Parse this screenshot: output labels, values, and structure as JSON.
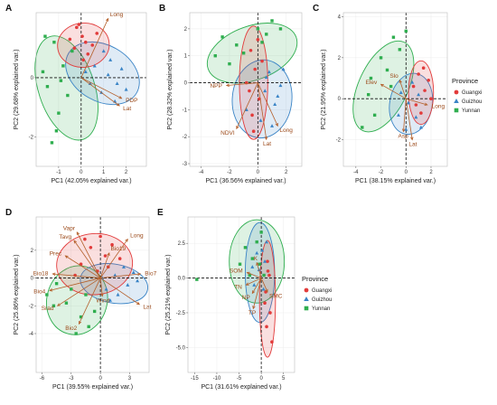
{
  "colors": {
    "Guangxi": "#e23b3b",
    "Guizhou": "#3a84c6",
    "Yunnan": "#2fae4f",
    "arrow": "#b45f2a"
  },
  "legends": [
    {
      "title": "Province",
      "items": [
        "Guangxi",
        "Guizhou",
        "Yunnan"
      ]
    },
    {
      "title": "Province",
      "items": [
        "Guangxi",
        "Guizhou",
        "Yunnan"
      ]
    }
  ],
  "chart_data": [
    {
      "id": "A",
      "type": "scatter",
      "xlabel": "PC1 (42.05% explained var.)",
      "ylabel": "PC2 (29.68% explained var.)",
      "xlim": [
        -2,
        2.9
      ],
      "ylim": [
        -3.0,
        2.2
      ],
      "xticks": [
        -1,
        0,
        1,
        2
      ],
      "yticks": [
        -2,
        0
      ],
      "ellipses": {
        "Guangxi": {
          "cx": 0.1,
          "cy": 1.1,
          "rx": 1.15,
          "ry": 0.75,
          "angle": 5
        },
        "Guizhou": {
          "cx": 0.95,
          "cy": 0.15,
          "rx": 1.75,
          "ry": 0.95,
          "angle": -30
        },
        "Yunnan": {
          "cx": -0.65,
          "cy": -0.35,
          "rx": 2.4,
          "ry": 0.95,
          "angle": -72
        }
      },
      "points": {
        "Guangxi": [
          [
            -0.2,
            1.7
          ],
          [
            0.05,
            1.4
          ],
          [
            0.2,
            1.2
          ],
          [
            -0.3,
            1.0
          ],
          [
            0.5,
            1.1
          ],
          [
            0.3,
            0.8
          ],
          [
            -0.5,
            1.3
          ],
          [
            0.7,
            1.5
          ],
          [
            0.1,
            0.6
          ],
          [
            -0.1,
            1.8
          ]
        ],
        "Guizhou": [
          [
            0.6,
            0.4
          ],
          [
            1.2,
            0.1
          ],
          [
            1.6,
            -0.2
          ],
          [
            0.9,
            -0.5
          ],
          [
            1.8,
            0.3
          ],
          [
            0.4,
            -0.2
          ],
          [
            1.3,
            0.6
          ],
          [
            2.0,
            -0.4
          ],
          [
            0.2,
            0.2
          ],
          [
            1.0,
            0.9
          ],
          [
            1.5,
            -0.8
          ]
        ],
        "Yunnan": [
          [
            -1.2,
            1.2
          ],
          [
            -0.8,
            0.4
          ],
          [
            -1.5,
            -0.3
          ],
          [
            -1.0,
            -1.2
          ],
          [
            -1.3,
            -2.2
          ],
          [
            -0.6,
            -0.6
          ],
          [
            -1.7,
            0.2
          ],
          [
            -0.4,
            0.9
          ],
          [
            -1.1,
            -1.8
          ],
          [
            -0.9,
            -0.1
          ],
          [
            -1.6,
            1.4
          ]
        ]
      },
      "loadings": [
        {
          "label": "Long",
          "x": 1.2,
          "y": 2.0
        },
        {
          "label": "PDP",
          "x": 1.8,
          "y": -0.7
        },
        {
          "label": "Lat",
          "x": 1.7,
          "y": -0.95
        }
      ]
    },
    {
      "id": "B",
      "type": "scatter",
      "xlabel": "PC1 (36.56% explained var.)",
      "ylabel": "PC2 (28.32% explained var.)",
      "xlim": [
        -4.8,
        3.1
      ],
      "ylim": [
        -3.1,
        2.6
      ],
      "xticks": [
        -4,
        -2,
        0,
        2
      ],
      "yticks": [
        -3,
        -2,
        -1,
        0,
        1,
        2
      ],
      "ellipses": {
        "Guangxi": {
          "cx": -0.3,
          "cy": 0.0,
          "rx": 1.0,
          "ry": 2.1,
          "angle": 0
        },
        "Guizhou": {
          "cx": 0.3,
          "cy": -0.6,
          "rx": 2.1,
          "ry": 1.45,
          "angle": -5
        },
        "Yunnan": {
          "cx": -0.4,
          "cy": 1.1,
          "rx": 3.3,
          "ry": 1.0,
          "angle": 20
        }
      },
      "points": {
        "Guangxi": [
          [
            -0.5,
            1.2
          ],
          [
            -0.2,
            0.5
          ],
          [
            -0.8,
            0.0
          ],
          [
            0.1,
            -0.6
          ],
          [
            -0.4,
            -1.2
          ],
          [
            0.3,
            0.8
          ],
          [
            -0.6,
            -0.3
          ],
          [
            0.0,
            1.6
          ],
          [
            -0.3,
            -1.8
          ]
        ],
        "Guizhou": [
          [
            0.5,
            -0.3
          ],
          [
            1.2,
            -0.8
          ],
          [
            0.8,
            0.4
          ],
          [
            1.6,
            -0.1
          ],
          [
            0.2,
            -1.4
          ],
          [
            1.0,
            -1.6
          ],
          [
            1.8,
            0.5
          ],
          [
            -0.8,
            -1.0
          ],
          [
            0.6,
            0.2
          ],
          [
            1.4,
            -0.5
          ]
        ],
        "Yunnan": [
          [
            -2.5,
            1.7
          ],
          [
            -1.5,
            1.4
          ],
          [
            0.0,
            2.0
          ],
          [
            1.0,
            2.3
          ],
          [
            -3.0,
            1.0
          ],
          [
            0.6,
            1.8
          ],
          [
            -1.0,
            1.1
          ],
          [
            1.6,
            2.0
          ],
          [
            -2.0,
            0.7
          ],
          [
            0.3,
            1.5
          ]
        ]
      },
      "loadings": [
        {
          "label": "NPP",
          "x": -2.2,
          "y": -0.1
        },
        {
          "label": "NDVI",
          "x": -1.5,
          "y": -1.7
        },
        {
          "label": "Long",
          "x": 1.4,
          "y": -1.6
        },
        {
          "label": "Lat",
          "x": 0.6,
          "y": -2.1
        }
      ]
    },
    {
      "id": "C",
      "type": "scatter",
      "xlabel": "PC1 (38.15% explained var.)",
      "ylabel": "PC2 (21.95% explained var.)",
      "xlim": [
        -5.0,
        3.3
      ],
      "ylim": [
        -3.3,
        4.2
      ],
      "xticks": [
        -4,
        -2,
        0,
        2
      ],
      "yticks": [
        -2,
        0,
        2,
        4
      ],
      "ellipses": {
        "Guangxi": {
          "cx": 1.2,
          "cy": 0.3,
          "rx": 1.0,
          "ry": 1.55,
          "angle": 0
        },
        "Guizhou": {
          "cx": 0.4,
          "cy": -0.25,
          "rx": 1.7,
          "ry": 1.5,
          "angle": -10
        },
        "Yunnan": {
          "cx": -1.8,
          "cy": 0.6,
          "rx": 3.9,
          "ry": 1.2,
          "angle": 65
        }
      },
      "points": {
        "Guangxi": [
          [
            1.0,
            1.2
          ],
          [
            1.5,
            0.4
          ],
          [
            0.8,
            -0.3
          ],
          [
            1.8,
            0.9
          ],
          [
            1.2,
            -0.7
          ],
          [
            2.0,
            0.0
          ],
          [
            0.6,
            0.6
          ],
          [
            1.4,
            1.5
          ]
        ],
        "Guizhou": [
          [
            0.2,
            -0.2
          ],
          [
            0.8,
            -0.9
          ],
          [
            -0.4,
            0.3
          ],
          [
            1.2,
            -1.4
          ],
          [
            0.5,
            0.8
          ],
          [
            -0.6,
            -0.8
          ],
          [
            0.0,
            -1.5
          ],
          [
            1.0,
            0.2
          ]
        ],
        "Yunnan": [
          [
            -1.0,
            3.0
          ],
          [
            -2.0,
            2.0
          ],
          [
            -3.0,
            0.2
          ],
          [
            -1.5,
            1.4
          ],
          [
            -0.5,
            2.4
          ],
          [
            -2.5,
            -0.8
          ],
          [
            -3.5,
            -1.4
          ],
          [
            -1.2,
            0.6
          ],
          [
            0.0,
            3.3
          ],
          [
            -2.8,
            1.0
          ]
        ]
      },
      "loadings": [
        {
          "label": "Elev",
          "x": -2.0,
          "y": 0.7
        },
        {
          "label": "Slo",
          "x": -0.5,
          "y": 0.9
        },
        {
          "label": "Long",
          "x": 1.7,
          "y": -0.3
        },
        {
          "label": "Asp",
          "x": -0.2,
          "y": -1.6
        },
        {
          "label": "Lat",
          "x": 0.5,
          "y": -2.0
        }
      ]
    },
    {
      "id": "D",
      "type": "scatter",
      "xlabel": "PC1 (39.55% explained var.)",
      "ylabel": "PC2 (25.86% explained var.)",
      "xlim": [
        -6.6,
        5.0
      ],
      "ylim": [
        -6.8,
        4.4
      ],
      "xticks": [
        -6,
        -3,
        0,
        3
      ],
      "yticks": [
        -4,
        -2,
        0,
        2
      ],
      "ellipses": {
        "Guangxi": {
          "cx": -0.6,
          "cy": 1.0,
          "rx": 3.9,
          "ry": 2.2,
          "angle": 5
        },
        "Guizhou": {
          "cx": 1.4,
          "cy": -0.4,
          "rx": 3.5,
          "ry": 1.4,
          "angle": -10
        },
        "Yunnan": {
          "cx": -2.4,
          "cy": -1.6,
          "rx": 3.1,
          "ry": 2.5,
          "angle": -15
        }
      },
      "points": {
        "Guangxi": [
          [
            -1.0,
            2.2
          ],
          [
            0.5,
            1.6
          ],
          [
            -2.0,
            1.0
          ],
          [
            1.2,
            2.4
          ],
          [
            -0.3,
            0.5
          ],
          [
            -1.6,
            2.8
          ],
          [
            0.8,
            0.8
          ],
          [
            2.0,
            1.4
          ],
          [
            -2.6,
            0.2
          ],
          [
            0.0,
            3.0
          ]
        ],
        "Guizhou": [
          [
            1.5,
            0.2
          ],
          [
            2.8,
            -0.5
          ],
          [
            0.6,
            -0.8
          ],
          [
            3.4,
            0.4
          ],
          [
            1.8,
            -1.2
          ],
          [
            2.4,
            0.8
          ],
          [
            0.2,
            0.0
          ],
          [
            3.8,
            -0.2
          ],
          [
            1.0,
            -1.6
          ]
        ],
        "Yunnan": [
          [
            -4.5,
            -0.4
          ],
          [
            -3.5,
            -1.8
          ],
          [
            -2.0,
            -2.8
          ],
          [
            -1.2,
            -3.5
          ],
          [
            -4.8,
            -2.0
          ],
          [
            -3.0,
            -0.8
          ],
          [
            -5.5,
            -1.2
          ],
          [
            -2.5,
            -4.0
          ],
          [
            -1.5,
            -1.2
          ],
          [
            -0.6,
            -2.4
          ]
        ]
      },
      "loadings": [
        {
          "label": "Vapr",
          "x": -2.4,
          "y": 3.3
        },
        {
          "label": "Tavg",
          "x": -2.7,
          "y": 2.7
        },
        {
          "label": "Prec",
          "x": -3.6,
          "y": 1.6
        },
        {
          "label": "Bio19",
          "x": 0.9,
          "y": 1.8
        },
        {
          "label": "Bio18",
          "x": -4.9,
          "y": 0.3
        },
        {
          "label": "Long",
          "x": 2.8,
          "y": 2.8
        },
        {
          "label": "Bio7",
          "x": 4.1,
          "y": 0.3
        },
        {
          "label": "Bio4",
          "x": -5.2,
          "y": -0.9
        },
        {
          "label": "Srad",
          "x": -4.4,
          "y": -2.0
        },
        {
          "label": "Wind",
          "x": 0.2,
          "y": -1.3
        },
        {
          "label": "Bio2",
          "x": -2.2,
          "y": -3.3
        },
        {
          "label": "Lat",
          "x": 4.0,
          "y": -1.9
        }
      ]
    },
    {
      "id": "E",
      "type": "scatter",
      "xlabel": "PC1 (31.61% explained var.)",
      "ylabel": "PC2 (25.21% explained var.)",
      "xlim": [
        -16.5,
        7.5
      ],
      "ylim": [
        -6.8,
        4.4
      ],
      "xticks": [
        -15,
        -10,
        -5,
        0,
        5
      ],
      "yticks": [
        -5.0,
        -2.5,
        0.0,
        2.5
      ],
      "ellipses": {
        "Guangxi": {
          "cx": 1.4,
          "cy": -1.5,
          "rx": 1.8,
          "ry": 4.2,
          "angle": 0
        },
        "Guizhou": {
          "cx": -0.3,
          "cy": 0.4,
          "rx": 3.3,
          "ry": 3.6,
          "angle": 0
        },
        "Yunnan": {
          "cx": -1.0,
          "cy": 1.2,
          "rx": 6.2,
          "ry": 3.0,
          "angle": 0
        }
      },
      "points": {
        "Guangxi": [
          [
            1.5,
            0.5
          ],
          [
            1.0,
            -1.0
          ],
          [
            2.0,
            -2.5
          ],
          [
            1.2,
            -3.5
          ],
          [
            1.8,
            0.2
          ],
          [
            0.8,
            -1.8
          ],
          [
            1.4,
            1.2
          ],
          [
            2.4,
            -4.6
          ]
        ],
        "Guizhou": [
          [
            -0.5,
            0.6
          ],
          [
            0.2,
            2.0
          ],
          [
            -1.6,
            -0.5
          ],
          [
            0.8,
            1.2
          ],
          [
            -1.0,
            1.8
          ],
          [
            0.5,
            -0.8
          ],
          [
            -2.0,
            0.8
          ],
          [
            1.2,
            2.6
          ]
        ],
        "Yunnan": [
          [
            -2.0,
            1.4
          ],
          [
            -3.6,
            2.2
          ],
          [
            0.0,
            3.3
          ],
          [
            -1.0,
            2.6
          ],
          [
            -4.8,
            1.0
          ],
          [
            -2.6,
            0.2
          ],
          [
            -14.5,
            -0.1
          ],
          [
            0.6,
            0.2
          ],
          [
            -0.4,
            1.0
          ]
        ]
      },
      "loadings": [
        {
          "label": "K",
          "x": -1.0,
          "y": 1.1
        },
        {
          "label": "SOM",
          "x": -3.2,
          "y": 0.4
        },
        {
          "label": "TN",
          "x": -3.4,
          "y": -0.5
        },
        {
          "label": "NP",
          "x": -2.0,
          "y": -1.1
        },
        {
          "label": "SMC",
          "x": 1.4,
          "y": -1.0
        },
        {
          "label": "TP",
          "x": -1.8,
          "y": -2.2
        }
      ]
    }
  ]
}
